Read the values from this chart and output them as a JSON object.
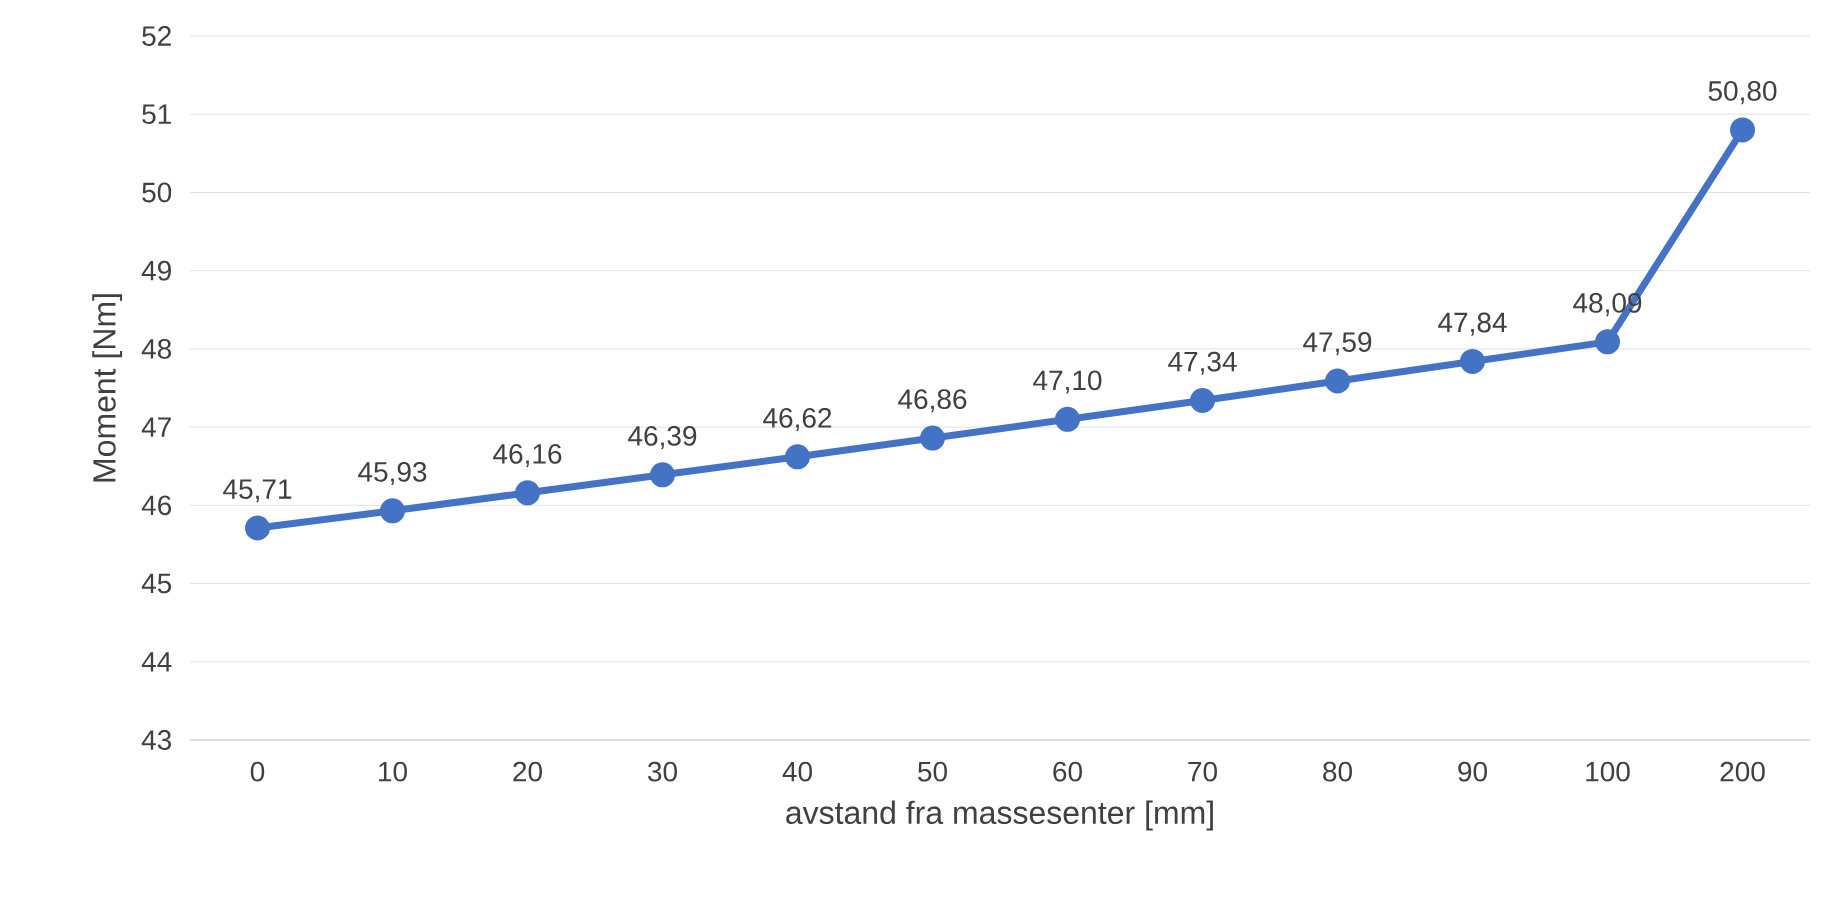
{
  "chart_data": {
    "type": "line",
    "xlabel": "avstand fra massesenter [mm]",
    "ylabel": "Moment [Nm]",
    "categories": [
      "0",
      "10",
      "20",
      "30",
      "40",
      "50",
      "60",
      "70",
      "80",
      "90",
      "100",
      "200"
    ],
    "series": [
      {
        "color": "#4472c4",
        "values": [
          45.71,
          45.93,
          46.16,
          46.39,
          46.62,
          46.86,
          47.1,
          47.34,
          47.59,
          47.84,
          48.09,
          50.8
        ],
        "value_labels": [
          "45,71",
          "45,93",
          "46,16",
          "46,39",
          "46,62",
          "46,86",
          "47,10",
          "47,34",
          "47,59",
          "47,84",
          "48,09",
          "50,80"
        ]
      }
    ],
    "ylim": [
      43,
      52
    ],
    "yticks": [
      43,
      44,
      45,
      46,
      47,
      48,
      49,
      50,
      51,
      52
    ],
    "grid": "y",
    "marker": "circle",
    "line_style": "solid",
    "legend": false
  }
}
